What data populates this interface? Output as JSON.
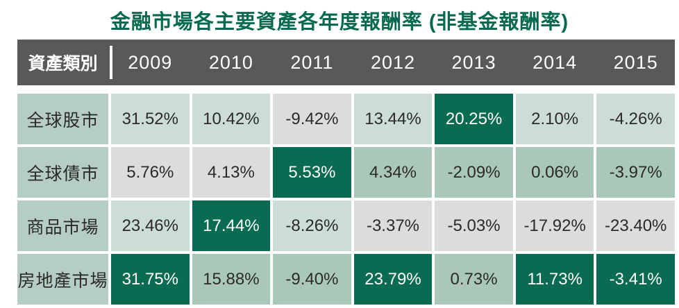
{
  "title": "金融市場各主要資產各年度報酬率 (非基金報酬率)",
  "colors": {
    "title_green": "#07694f",
    "header_gray": "#58595b",
    "highlight_dark_green": "#0a6b53",
    "light_green": "#cbddd4",
    "mid_green": "#a9c8ba",
    "light_gray": "#dbdcdb",
    "label_green": "#b5cdc2",
    "text_dark": "#2b2a29"
  },
  "table": {
    "header_label": "資產類別",
    "years": [
      "2009",
      "2010",
      "2011",
      "2012",
      "2013",
      "2014",
      "2015"
    ],
    "rows": [
      {
        "label": "全球股市",
        "values": [
          "31.52%",
          "10.42%",
          "-9.42%",
          "13.44%",
          "20.25%",
          "2.10%",
          "-4.26%"
        ],
        "tones": [
          "light",
          "light",
          "gray",
          "light",
          "dark",
          "light",
          "light"
        ]
      },
      {
        "label": "全球債市",
        "values": [
          "5.76%",
          "4.13%",
          "5.53%",
          "4.34%",
          "-2.09%",
          "0.06%",
          "-3.97%"
        ],
        "tones": [
          "gray",
          "gray",
          "dark",
          "mid",
          "mid",
          "mid",
          "mid"
        ]
      },
      {
        "label": "商品市場",
        "values": [
          "23.46%",
          "17.44%",
          "-8.26%",
          "-3.37%",
          "-5.03%",
          "-17.92%",
          "-23.40%"
        ],
        "tones": [
          "light",
          "dark",
          "light",
          "gray",
          "gray",
          "gray",
          "gray"
        ]
      },
      {
        "label": "房地產市場",
        "values": [
          "31.75%",
          "15.88%",
          "-9.40%",
          "23.79%",
          "0.73%",
          "11.73%",
          "-3.41%"
        ],
        "tones": [
          "dark",
          "mid",
          "mid",
          "dark",
          "mid",
          "dark",
          "dark"
        ]
      }
    ]
  },
  "chart_data": {
    "type": "table",
    "title": "金融市場各主要資產各年度報酬率 (非基金報酬率)",
    "categories": [
      "2009",
      "2010",
      "2011",
      "2012",
      "2013",
      "2014",
      "2015"
    ],
    "series": [
      {
        "name": "全球股市",
        "values": [
          31.52,
          10.42,
          -9.42,
          13.44,
          20.25,
          2.1,
          -4.26
        ]
      },
      {
        "name": "全球債市",
        "values": [
          5.76,
          4.13,
          5.53,
          4.34,
          -2.09,
          0.06,
          -3.97
        ]
      },
      {
        "name": "商品市場",
        "values": [
          23.46,
          17.44,
          -8.26,
          -3.37,
          -5.03,
          -17.92,
          -23.4
        ]
      },
      {
        "name": "房地產市場",
        "values": [
          31.75,
          15.88,
          -9.4,
          23.79,
          0.73,
          11.73,
          -3.41
        ]
      }
    ],
    "unit": "percent",
    "layout_hints": "dark green cell = best performing asset of each year, white text"
  }
}
